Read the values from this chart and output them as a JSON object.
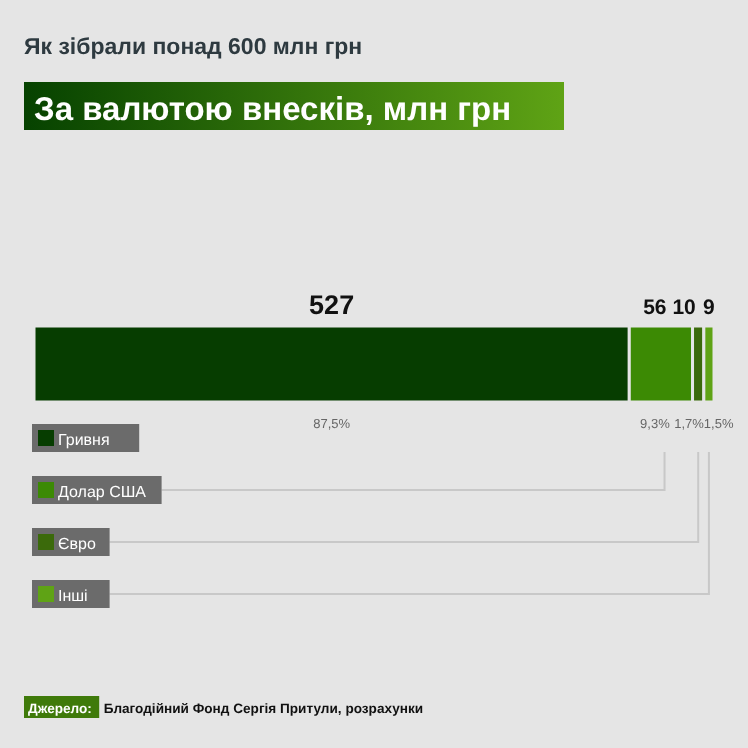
{
  "chart_data": {
    "type": "bar",
    "orientation": "horizontal",
    "stacked": true,
    "title": "Як зібрали понад 600 млн грн",
    "subtitle": "За валютою внесків, млн грн",
    "categories": [
      null
    ],
    "data_labels": true,
    "legend": "bottom left",
    "series": [
      {
        "name": "Гривня",
        "color": "#063d00",
        "values": [
          527
        ]
      },
      {
        "name": "Долар США",
        "color": "#3c8a04",
        "values": [
          56
        ]
      },
      {
        "name": "Євро",
        "color": "#3b6a0b",
        "values": [
          10
        ]
      },
      {
        "name": "Інші",
        "color": "#5fa315",
        "values": [
          9
        ]
      }
    ],
    "annotations": [
      "87,5%",
      "9,3%",
      "1,7%",
      "1,5%",
      "Джерело: Благодійний Фонд Сергія Притули, розрахунки"
    ]
  }
}
